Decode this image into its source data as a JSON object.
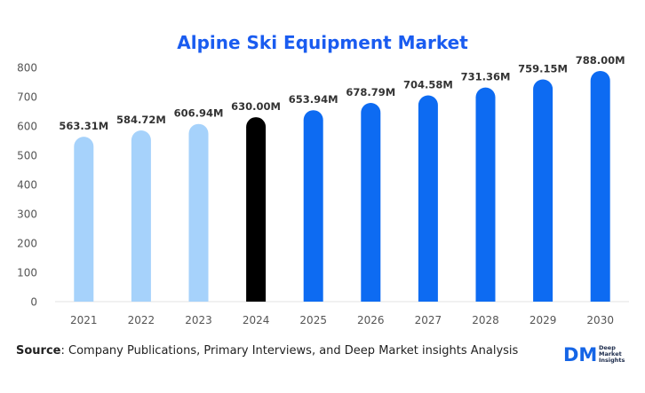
{
  "title": "Alpine Ski Equipment Market",
  "colors": {
    "title": "#1a5cf0",
    "historical": "#a6d2fb",
    "base_year": "#000000",
    "forecast": "#0d6bf2",
    "axis_text": "#555555",
    "grid": "#e3e3e3"
  },
  "source": {
    "label": "Source",
    "text": ": Company Publications, Primary Interviews, and Deep Market insights Analysis"
  },
  "logo": {
    "mark": "DM",
    "line1": "Deep",
    "line2": "Market",
    "line3": "Insights"
  },
  "chart_data": {
    "type": "bar",
    "categories": [
      "2021",
      "2022",
      "2023",
      "2024",
      "2025",
      "2026",
      "2027",
      "2028",
      "2029",
      "2030"
    ],
    "values": [
      563.31,
      584.72,
      606.94,
      630.0,
      653.94,
      678.79,
      704.58,
      731.36,
      759.15,
      788.0
    ],
    "data_labels": [
      "563.31M",
      "584.72M",
      "606.94M",
      "630.00M",
      "653.94M",
      "678.79M",
      "704.58M",
      "731.36M",
      "759.15M",
      "788.00M"
    ],
    "bar_groups": [
      "historical",
      "historical",
      "historical",
      "base_year",
      "forecast",
      "forecast",
      "forecast",
      "forecast",
      "forecast",
      "forecast"
    ],
    "ylim": [
      0,
      800
    ],
    "yticks": [
      0,
      100,
      200,
      300,
      400,
      500,
      600,
      700,
      800
    ],
    "grid": false,
    "legend": "none"
  }
}
